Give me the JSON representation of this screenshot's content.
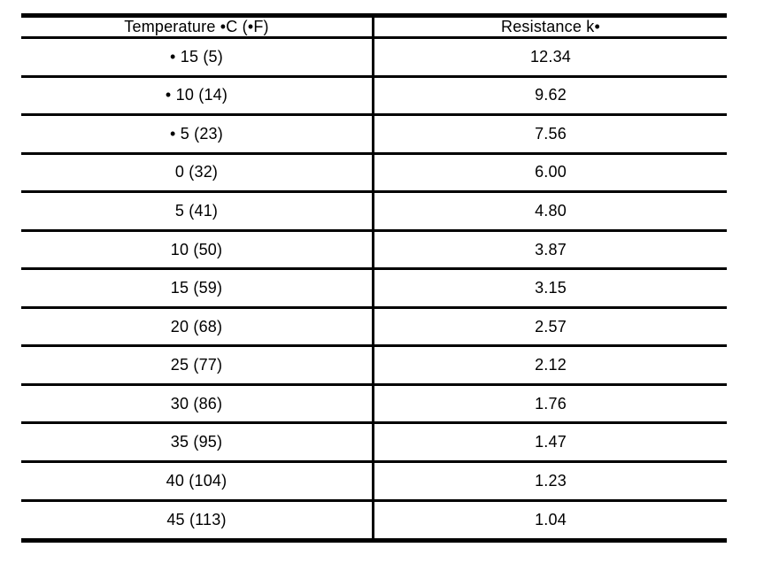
{
  "table": {
    "columns": [
      "Temperature •C (•F)",
      "Resistance k•"
    ],
    "rows": [
      [
        "• 15 (5)",
        "12.34"
      ],
      [
        "• 10 (14)",
        "9.62"
      ],
      [
        "• 5 (23)",
        "7.56"
      ],
      [
        "0 (32)",
        "6.00"
      ],
      [
        "5 (41)",
        "4.80"
      ],
      [
        "10 (50)",
        "3.87"
      ],
      [
        "15 (59)",
        "3.15"
      ],
      [
        "20 (68)",
        "2.57"
      ],
      [
        "25 (77)",
        "2.12"
      ],
      [
        "30 (86)",
        "1.76"
      ],
      [
        "35 (95)",
        "1.47"
      ],
      [
        "40 (104)",
        "1.23"
      ],
      [
        "45 (113)",
        "1.04"
      ]
    ]
  },
  "colors": {
    "border": "#000000",
    "text": "#000000",
    "background": "#ffffff"
  }
}
